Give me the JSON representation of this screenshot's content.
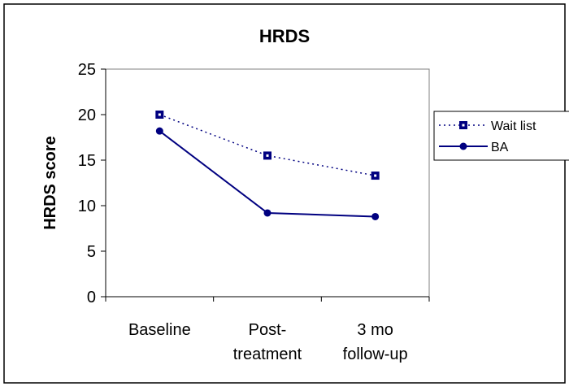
{
  "chart_data": {
    "type": "line",
    "title": "HRDS",
    "xlabel": "",
    "ylabel": "HRDS score",
    "categories": [
      [
        "Baseline"
      ],
      [
        "Post-",
        "treatment"
      ],
      [
        "3 mo",
        "follow-up"
      ]
    ],
    "ylim": [
      0,
      25
    ],
    "yticks": [
      0,
      5,
      10,
      15,
      20,
      25
    ],
    "grid": false,
    "legend_position": "right",
    "series": [
      {
        "name": "Wait list",
        "values": [
          20.0,
          15.5,
          13.3
        ],
        "color": "#000080",
        "line_style": "dotted",
        "marker": "square"
      },
      {
        "name": "BA",
        "values": [
          18.2,
          9.2,
          8.8
        ],
        "color": "#000080",
        "line_style": "solid",
        "marker": "circle"
      }
    ]
  }
}
